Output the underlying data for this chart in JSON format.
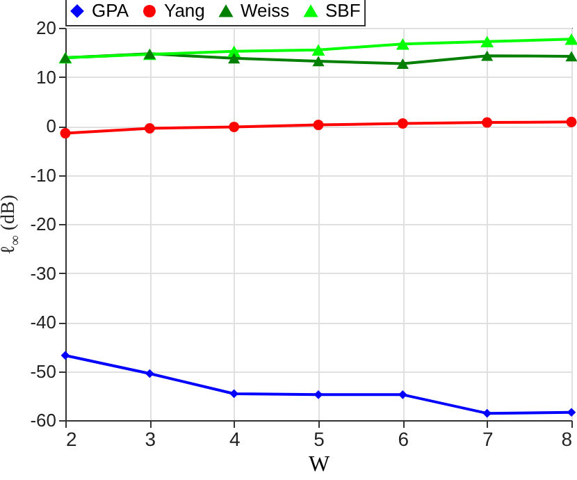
{
  "chart_data": {
    "type": "line",
    "xlabel": "W",
    "ylabel": "ℓ$_{∞}$ (dB)",
    "x": [
      2,
      3,
      4,
      5,
      6,
      7,
      8
    ],
    "series": [
      {
        "name": "GPA",
        "color": "#0000ff",
        "marker": "diamond",
        "values": [
          -46.8,
          -50.5,
          -54.6,
          -54.8,
          -54.8,
          -58.6,
          -58.4
        ]
      },
      {
        "name": "Yang",
        "color": "#ff0000",
        "marker": "circle",
        "values": [
          -1.5,
          -0.5,
          -0.2,
          0.2,
          0.5,
          0.7,
          0.8
        ]
      },
      {
        "name": "Weiss",
        "color": "#007f00",
        "marker": "triangle",
        "values": [
          13.9,
          14.7,
          13.8,
          13.2,
          12.7,
          14.3,
          14.2
        ]
      },
      {
        "name": "SBF",
        "color": "#00ff00",
        "marker": "triangle",
        "values": [
          13.9,
          14.6,
          15.2,
          15.5,
          16.7,
          17.2,
          17.7
        ]
      }
    ],
    "xlim": [
      2,
      8
    ],
    "xticks": [
      2,
      3,
      4,
      5,
      6,
      7,
      8
    ],
    "ylim": [
      -60,
      20
    ],
    "yticks": [
      -60,
      -50,
      -40,
      -30,
      -20,
      -10,
      0,
      10,
      20
    ],
    "grid": true,
    "legend": "top",
    "line_style": "solid"
  }
}
